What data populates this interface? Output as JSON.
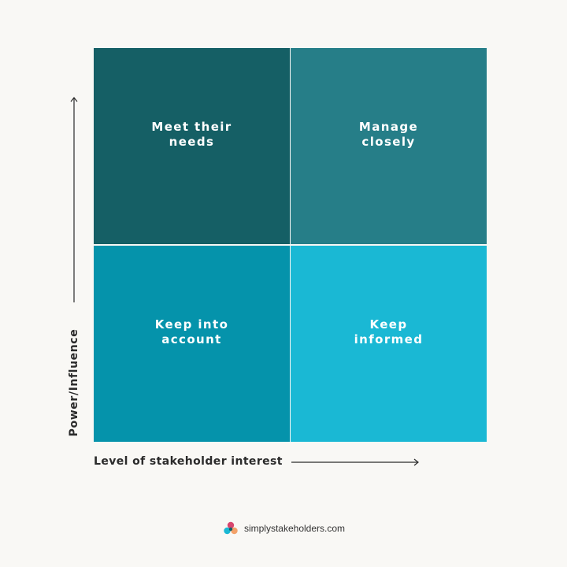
{
  "quadrants": {
    "top_left": {
      "line1": "Meet their",
      "line2": "needs",
      "color": "#155f65"
    },
    "top_right": {
      "line1": "Manage",
      "line2": "closely",
      "color": "#267e88"
    },
    "bottom_left": {
      "line1": "Keep into",
      "line2": "account",
      "color": "#0593ab"
    },
    "bottom_right": {
      "line1": "Keep",
      "line2": "informed",
      "color": "#1ab8d4"
    }
  },
  "axes": {
    "y_label": "Power/Influence",
    "x_label": "Level of stakeholder interest"
  },
  "footer": {
    "text": "simplystakeholders.com",
    "logo_icon": "simplystakeholders-logo-icon"
  }
}
